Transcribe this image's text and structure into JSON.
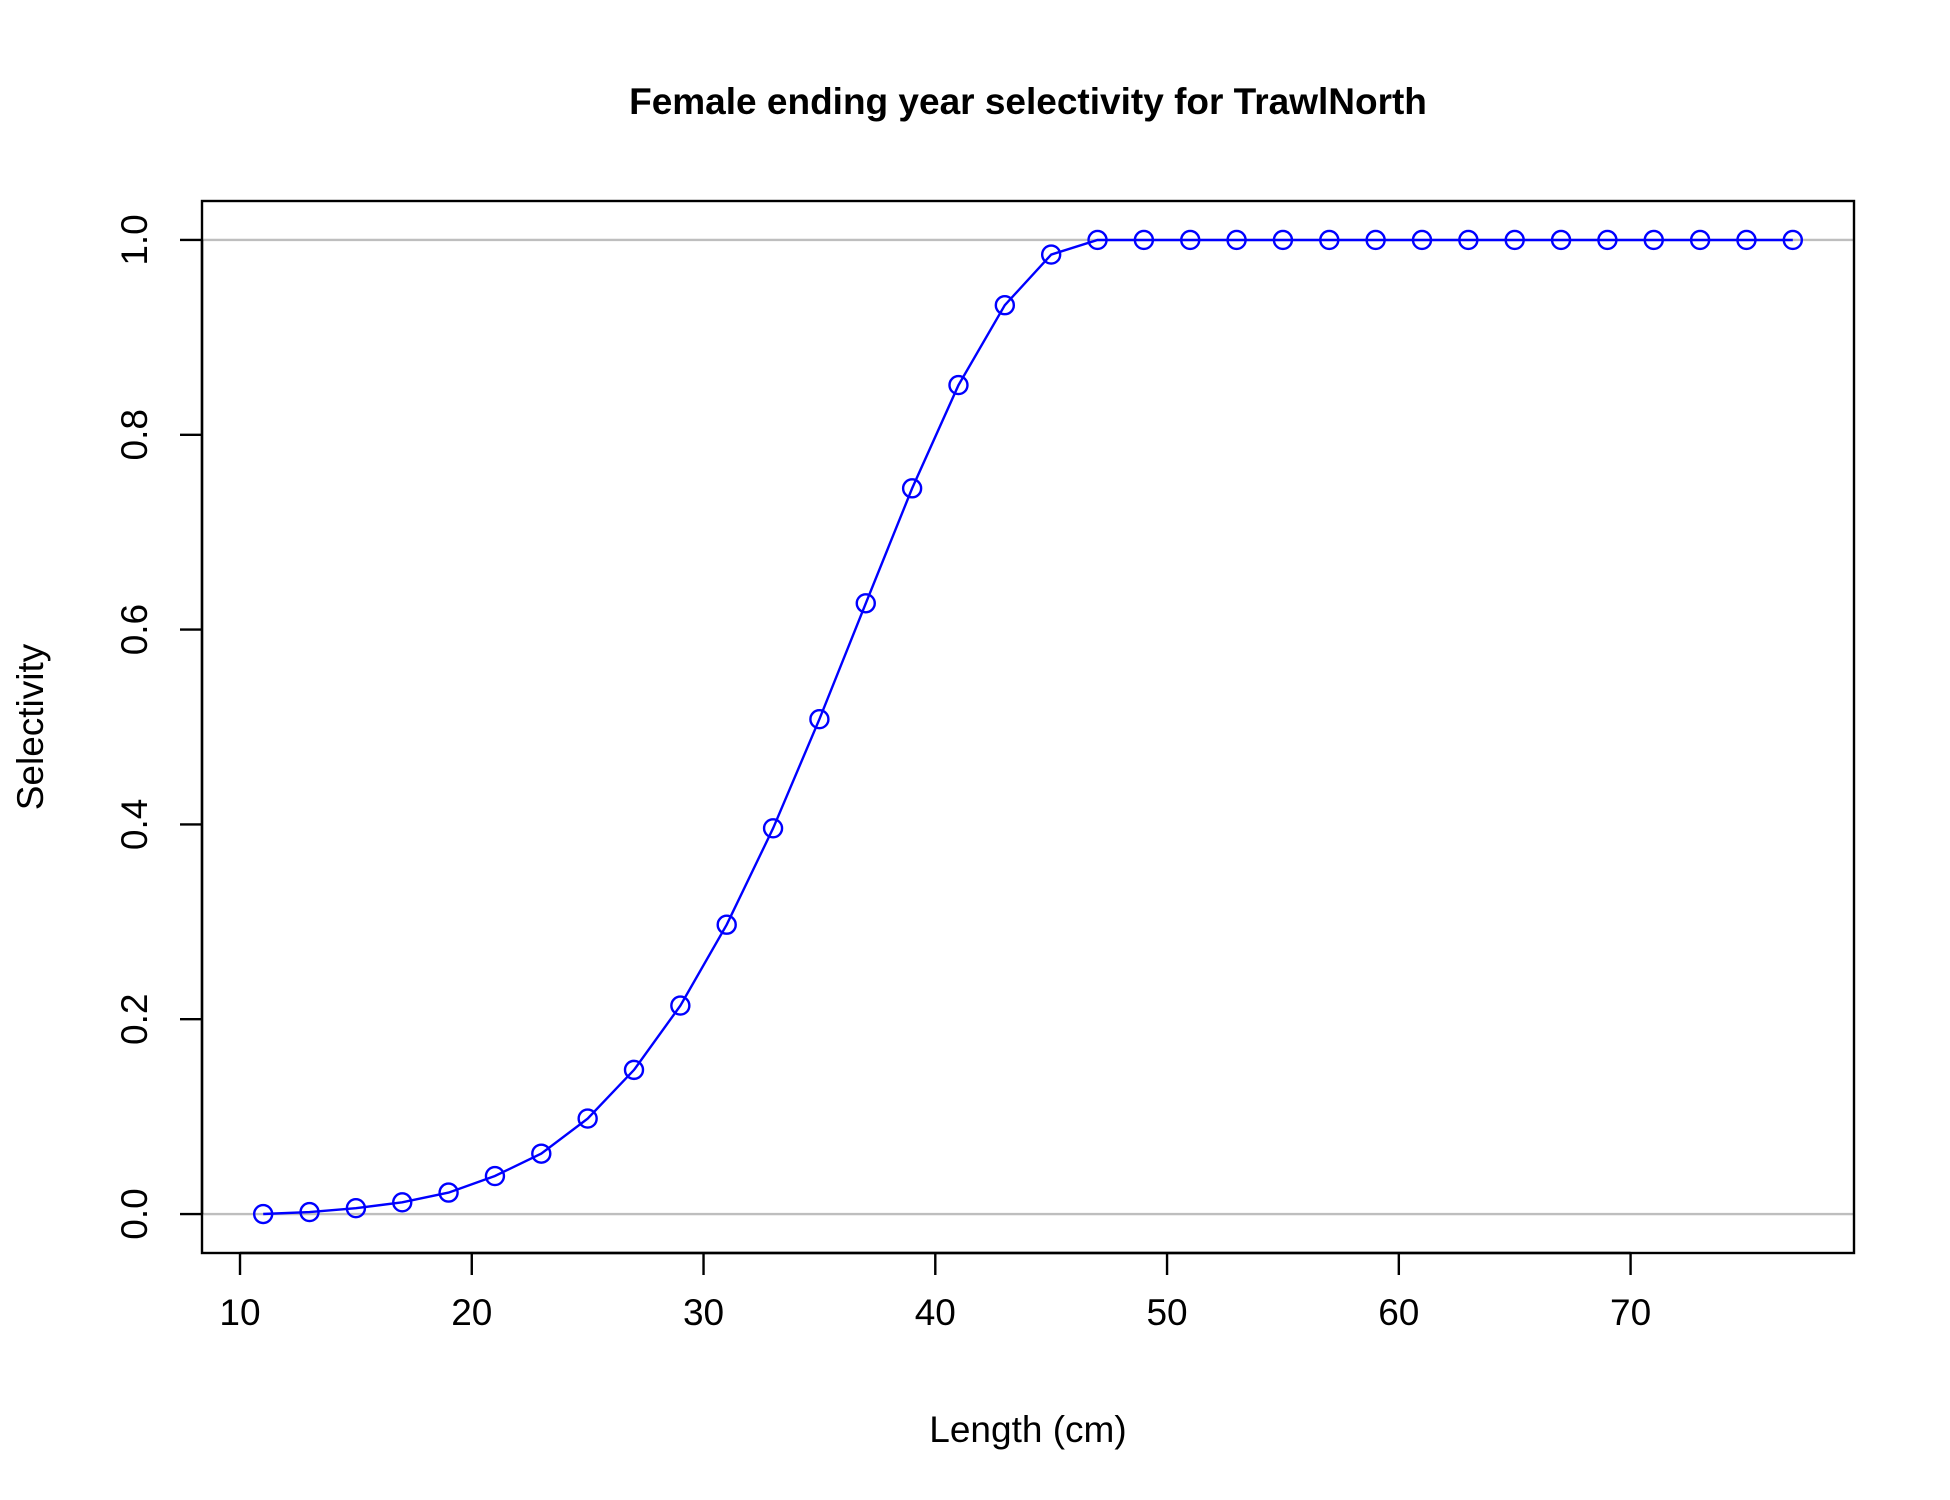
{
  "chart_data": {
    "type": "line",
    "title": "Female ending year selectivity for TrawlNorth",
    "xlabel": "Length (cm)",
    "ylabel": "Selectivity",
    "xlim": [
      8.36,
      79.64
    ],
    "ylim": [
      -0.04,
      1.04
    ],
    "xticks": [
      10,
      20,
      30,
      40,
      50,
      60,
      70
    ],
    "yticks": [
      0.0,
      0.2,
      0.4,
      0.6,
      0.8,
      1.0
    ],
    "xtick_labels": [
      "10",
      "20",
      "30",
      "40",
      "50",
      "60",
      "70"
    ],
    "ytick_labels": [
      "0.0",
      "0.2",
      "0.4",
      "0.6",
      "0.8",
      "1.0"
    ],
    "reference_lines_y": [
      0,
      1
    ],
    "reference_line_color": "#bebebe",
    "grid": false,
    "series": [
      {
        "color": "#0000ff",
        "marker": "open-circle",
        "x": [
          11,
          13,
          15,
          17,
          19,
          21,
          23,
          25,
          27,
          29,
          31,
          33,
          35,
          37,
          39,
          41,
          43,
          45,
          47,
          49,
          51,
          53,
          55,
          57,
          59,
          61,
          63,
          65,
          67,
          69,
          71,
          73,
          75,
          77
        ],
        "y": [
          0.0,
          0.002,
          0.006,
          0.012,
          0.022,
          0.039,
          0.062,
          0.098,
          0.148,
          0.214,
          0.297,
          0.396,
          0.508,
          0.627,
          0.745,
          0.851,
          0.933,
          0.985,
          1.0,
          1.0,
          1.0,
          1.0,
          1.0,
          1.0,
          1.0,
          1.0,
          1.0,
          1.0,
          1.0,
          1.0,
          1.0,
          1.0,
          1.0,
          1.0
        ]
      }
    ]
  }
}
